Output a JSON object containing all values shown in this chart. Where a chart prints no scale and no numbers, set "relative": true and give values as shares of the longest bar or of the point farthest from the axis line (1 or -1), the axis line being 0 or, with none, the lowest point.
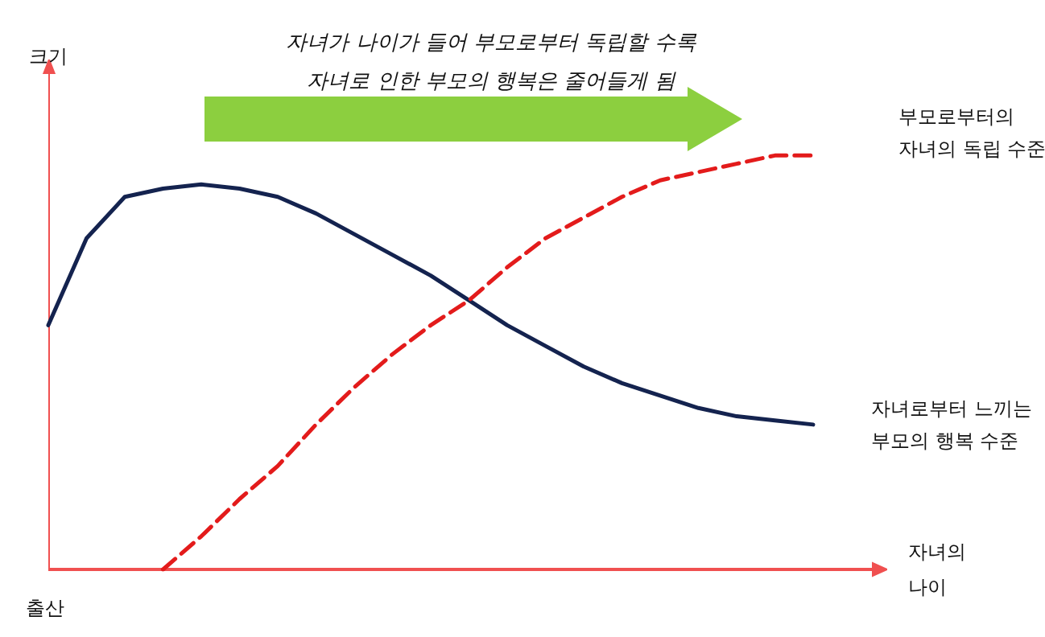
{
  "chart_data": {
    "type": "line",
    "relative": true,
    "title": "자녀가 나이가 들어 부모로부터 독립할 수록\n자녀로 인한 부모의 행복은 줄어들게 됨",
    "xlabel": "자녀의\n나이",
    "ylabel": "크기",
    "annotations": [
      "출산"
    ],
    "legend": false,
    "grid": false,
    "marker": "none",
    "categories": [
      null,
      null,
      null,
      null,
      null,
      null,
      null,
      null,
      null,
      null,
      null,
      null,
      null,
      null,
      null,
      null,
      null,
      null,
      null,
      null,
      null
    ],
    "series": [
      {
        "name": "자녀로부터 느끼는\n부모의 행복 수준",
        "color": "#14234f",
        "line_style": "solid",
        "values": [
          0.59,
          0.8,
          0.9,
          0.92,
          0.93,
          0.92,
          0.9,
          0.86,
          0.81,
          0.76,
          0.71,
          0.65,
          0.59,
          0.54,
          0.49,
          0.45,
          0.42,
          0.39,
          0.37,
          0.36,
          0.35
        ]
      },
      {
        "name": "부모로부터의\n자녀의 독립 수준",
        "color": "#e31b1b",
        "line_style": "dashed",
        "values": [
          null,
          null,
          null,
          0,
          0.08,
          0.17,
          0.25,
          0.35,
          0.44,
          0.52,
          0.59,
          0.65,
          0.73,
          0.8,
          0.85,
          0.9,
          0.94,
          0.96,
          0.98,
          1.0,
          1.0
        ]
      }
    ]
  }
}
